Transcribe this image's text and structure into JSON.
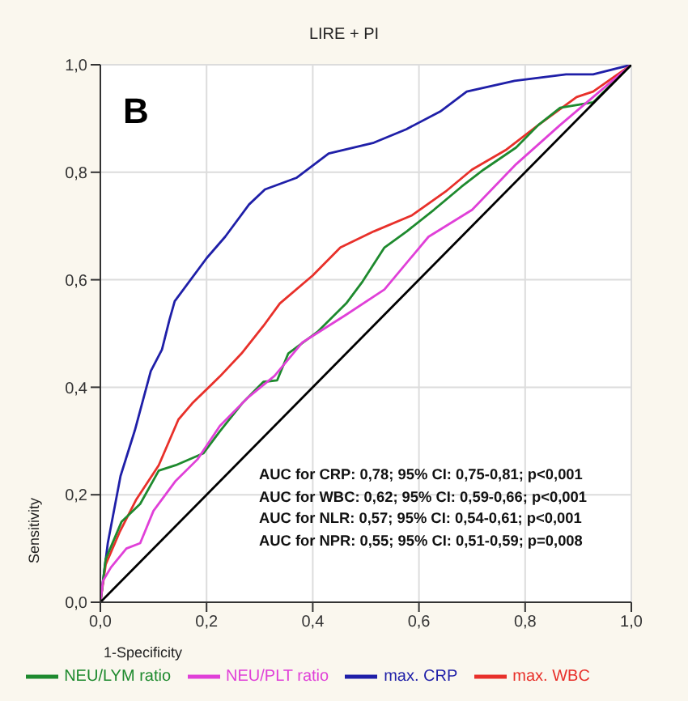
{
  "chart_data": {
    "type": "line",
    "title": "LIRE + PI",
    "xlabel": "1-Specificity",
    "ylabel": "Sensitivity",
    "annotations": [
      "B",
      "AUC for CRP: 0,78; 95% CI: 0,75-0,81; p<0,001",
      "AUC for WBC: 0,62; 95% CI: 0,59-0,66; p<0,001",
      "AUC for NLR: 0,57; 95% CI: 0,54-0,61; p<0,001",
      "AUC for NPR: 0,55; 95% CI: 0,51-0,59; p=0,008"
    ],
    "xlim": [
      0,
      1
    ],
    "ylim": [
      0,
      1
    ],
    "xticks": [
      {
        "value": 0,
        "label": "0,0"
      },
      {
        "value": 0.2,
        "label": "0,2"
      },
      {
        "value": 0.4,
        "label": "0,4"
      },
      {
        "value": 0.6,
        "label": "0,6"
      },
      {
        "value": 0.8,
        "label": "0,8"
      },
      {
        "value": 1,
        "label": "1,0"
      }
    ],
    "yticks": [
      {
        "value": 0,
        "label": "0,0"
      },
      {
        "value": 0.2,
        "label": "0,2"
      },
      {
        "value": 0.4,
        "label": "0,4"
      },
      {
        "value": 0.6,
        "label": "0,6"
      },
      {
        "value": 0.8,
        "label": "0,8"
      },
      {
        "value": 1,
        "label": "1,0"
      }
    ],
    "grid": true,
    "legend": "bottom",
    "marker": "none",
    "line_style": "solid",
    "series": [
      {
        "name": "max. CRP",
        "color": "#1f1fa8",
        "x": [
          0,
          0.014,
          0.038,
          0.065,
          0.095,
          0.116,
          0.13,
          0.14,
          0.2,
          0.235,
          0.28,
          0.31,
          0.37,
          0.43,
          0.515,
          0.576,
          0.64,
          0.69,
          0.78,
          0.877,
          0.928,
          1
        ],
        "values": [
          0,
          0.11,
          0.235,
          0.32,
          0.43,
          0.47,
          0.525,
          0.56,
          0.64,
          0.68,
          0.74,
          0.768,
          0.79,
          0.835,
          0.855,
          0.88,
          0.913,
          0.95,
          0.97,
          0.982,
          0.982,
          1
        ]
      },
      {
        "name": "max. WBC",
        "color": "#e8302a",
        "x": [
          0,
          0.01,
          0.036,
          0.067,
          0.11,
          0.147,
          0.173,
          0.225,
          0.266,
          0.307,
          0.338,
          0.4,
          0.452,
          0.515,
          0.587,
          0.65,
          0.7,
          0.763,
          0.825,
          0.897,
          0.928,
          1
        ],
        "values": [
          0,
          0.07,
          0.13,
          0.19,
          0.255,
          0.34,
          0.37,
          0.42,
          0.463,
          0.514,
          0.556,
          0.608,
          0.66,
          0.69,
          0.72,
          0.764,
          0.805,
          0.841,
          0.888,
          0.94,
          0.95,
          1
        ]
      },
      {
        "name": "NEU/LYM ratio",
        "color": "#1e8a2e",
        "x": [
          0,
          0.01,
          0.04,
          0.075,
          0.11,
          0.142,
          0.194,
          0.225,
          0.267,
          0.307,
          0.333,
          0.354,
          0.41,
          0.463,
          0.494,
          0.535,
          0.577,
          0.628,
          0.68,
          0.722,
          0.783,
          0.825,
          0.866,
          0.928,
          1
        ],
        "values": [
          0,
          0.08,
          0.15,
          0.183,
          0.245,
          0.255,
          0.277,
          0.318,
          0.37,
          0.41,
          0.413,
          0.463,
          0.504,
          0.556,
          0.597,
          0.66,
          0.69,
          0.73,
          0.773,
          0.805,
          0.846,
          0.888,
          0.92,
          0.93,
          1
        ]
      },
      {
        "name": "NEU/PLT ratio",
        "color": "#e040d8",
        "x": [
          0,
          0.005,
          0.02,
          0.049,
          0.075,
          0.1,
          0.142,
          0.183,
          0.225,
          0.277,
          0.328,
          0.38,
          0.463,
          0.535,
          0.618,
          0.7,
          0.783,
          0.866,
          0.928,
          1
        ],
        "values": [
          0,
          0.04,
          0.065,
          0.1,
          0.11,
          0.17,
          0.226,
          0.266,
          0.328,
          0.38,
          0.421,
          0.483,
          0.535,
          0.582,
          0.68,
          0.73,
          0.815,
          0.888,
          0.94,
          1
        ]
      },
      {
        "color": "#000000",
        "x": [
          0,
          1
        ],
        "values": [
          0,
          1
        ]
      }
    ]
  }
}
